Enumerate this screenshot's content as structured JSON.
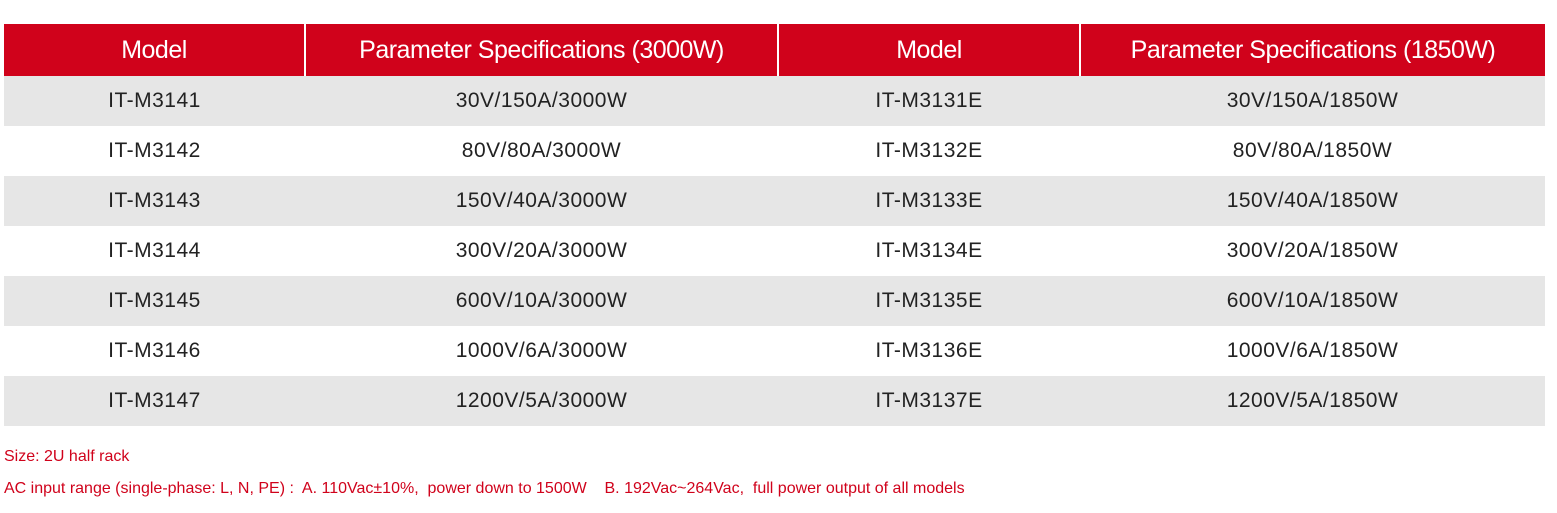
{
  "table": {
    "header": [
      "Model",
      "Parameter Specifications (3000W)",
      "Model",
      "Parameter Specifications (1850W)"
    ],
    "rows": [
      [
        "IT-M3141",
        "30V/150A/3000W",
        "IT-M3131E",
        "30V/150A/1850W"
      ],
      [
        "IT-M3142",
        "80V/80A/3000W",
        "IT-M3132E",
        "80V/80A/1850W"
      ],
      [
        "IT-M3143",
        "150V/40A/3000W",
        "IT-M3133E",
        "150V/40A/1850W"
      ],
      [
        "IT-M3144",
        "300V/20A/3000W",
        "IT-M3134E",
        "300V/20A/1850W"
      ],
      [
        "IT-M3145",
        "600V/10A/3000W",
        "IT-M3135E",
        "600V/10A/1850W"
      ],
      [
        "IT-M3146",
        "1000V/6A/3000W",
        "IT-M3136E",
        "1000V/6A/1850W"
      ],
      [
        "IT-M3147",
        "1200V/5A/3000W",
        "IT-M3137E",
        "1200V/5A/1850W"
      ]
    ]
  },
  "notes": [
    "Size: 2U half rack",
    "AC input range (single-phase: L, N, PE) :  A. 110Vac±10%,  power down to 1500W    B. 192Vac~264Vac,  full power output of all models"
  ]
}
